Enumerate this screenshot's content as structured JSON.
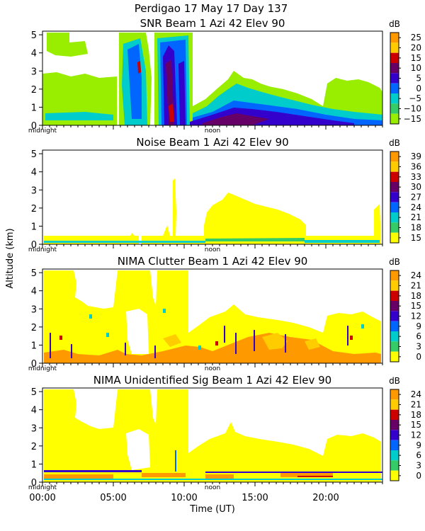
{
  "figure": {
    "header": "Perdigao  17 May 17 Day 137",
    "xlabel": "Time (UT)",
    "ylabel": "Altitude (km)",
    "x_ticks": [
      "00:00",
      "05:00",
      "10:00",
      "15:00",
      "20:00"
    ],
    "x_tick_hours": [
      0,
      5,
      10,
      15,
      20
    ],
    "midnight_label": "midnight",
    "noon_label": "noon",
    "unit_label": "dB"
  },
  "chart_data": [
    {
      "type": "heatmap",
      "title": "SNR Beam 1 Azi  42 Elev 90",
      "xlim": [
        0,
        24
      ],
      "ylim": [
        0,
        5.2
      ],
      "y_ticks": [
        0,
        1,
        2,
        3,
        4,
        5
      ],
      "colorbar_labels": [
        "25",
        "20",
        "15",
        "10",
        "5",
        "0",
        "−5",
        "−10",
        "−15"
      ],
      "colorbar_colors": [
        "#ff9900",
        "#ffcc00",
        "#cc0000",
        "#660066",
        "#3300cc",
        "#0066ff",
        "#00cccc",
        "#33cc66",
        "#99ee00"
      ]
    },
    {
      "type": "heatmap",
      "title": "Noise Beam 1 Azi  42 Elev 90",
      "xlim": [
        0,
        24
      ],
      "ylim": [
        0,
        5.2
      ],
      "y_ticks": [
        0,
        1,
        2,
        3,
        4,
        5
      ],
      "colorbar_labels": [
        "39",
        "36",
        "33",
        "30",
        "27",
        "24",
        "21",
        "18",
        "15"
      ],
      "colorbar_colors": [
        "#ff9900",
        "#ffcc00",
        "#cc0000",
        "#660066",
        "#3300cc",
        "#0066ff",
        "#00cccc",
        "#33cc66",
        "#ffff00"
      ]
    },
    {
      "type": "heatmap",
      "title": "NIMA Clutter Beam 1 Azi  42 Elev 90",
      "xlim": [
        0,
        24
      ],
      "ylim": [
        0,
        5.2
      ],
      "y_ticks": [
        0,
        1,
        2,
        3,
        4,
        5
      ],
      "colorbar_labels": [
        "24",
        "21",
        "18",
        "15",
        "12",
        "9",
        "6",
        "3",
        "0"
      ],
      "colorbar_colors": [
        "#ff9900",
        "#ffcc00",
        "#cc0000",
        "#660066",
        "#3300cc",
        "#0066ff",
        "#00cccc",
        "#33cc66",
        "#ffff00"
      ]
    },
    {
      "type": "heatmap",
      "title": "NIMA Unidentified Sig Beam 1 Azi  42 Elev 90",
      "xlim": [
        0,
        24
      ],
      "ylim": [
        0,
        5.2
      ],
      "y_ticks": [
        0,
        1,
        2,
        3,
        4,
        5
      ],
      "colorbar_labels": [
        "24",
        "21",
        "18",
        "15",
        "12",
        "9",
        "6",
        "3",
        "0"
      ],
      "colorbar_colors": [
        "#ff9900",
        "#ffcc00",
        "#cc0000",
        "#660066",
        "#3300cc",
        "#0066ff",
        "#00cccc",
        "#33cc66",
        "#ffff00"
      ]
    }
  ]
}
